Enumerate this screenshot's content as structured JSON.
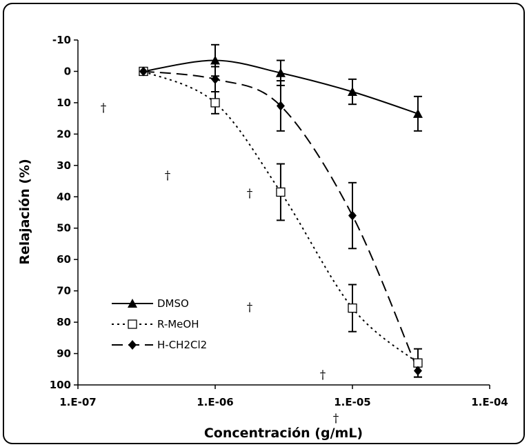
{
  "chart_data": {
    "type": "line",
    "xlabel": "Concentración (g/mL)",
    "ylabel": "Relajación (%)",
    "x_scale": "log",
    "x_tick_labels": [
      "1.E-07",
      "1.E-06",
      "1.E-05",
      "1.E-04"
    ],
    "y_tick_labels": [
      "-10",
      "0",
      "10",
      "20",
      "30",
      "40",
      "50",
      "60",
      "70",
      "80",
      "90",
      "100"
    ],
    "xlim": [
      1e-07,
      0.0001
    ],
    "ylim": [
      -10,
      100
    ],
    "y_inverted": true,
    "grid": false,
    "legend_position": "bottom-left",
    "series": [
      {
        "name": "DMSO",
        "marker": "filled-triangle",
        "line_style": "solid",
        "color": "#000000",
        "x": [
          3e-07,
          1e-06,
          3e-06,
          1e-05,
          3e-05
        ],
        "y": [
          0,
          -3.5,
          0.5,
          6.5,
          13.5
        ],
        "err": [
          0,
          5,
          4,
          4,
          5.5
        ]
      },
      {
        "name": "R-MeOH",
        "marker": "open-square",
        "line_style": "dotted",
        "color": "#000000",
        "x": [
          3e-07,
          1e-06,
          3e-06,
          1e-05,
          3e-05
        ],
        "y": [
          0,
          10,
          38.5,
          75.5,
          93
        ],
        "err": [
          0,
          3.5,
          9,
          7.5,
          4.5
        ]
      },
      {
        "name": "H-CH2Cl2",
        "marker": "filled-diamond",
        "line_style": "dashed",
        "color": "#000000",
        "x": [
          3e-07,
          1e-06,
          3e-06,
          1e-05,
          3e-05
        ],
        "y": [
          0,
          2.5,
          11,
          46,
          95.5
        ],
        "err": [
          0,
          4,
          8,
          10.5,
          2
        ]
      }
    ],
    "annotations": [
      "†",
      "†",
      "†",
      "†",
      "†",
      "†"
    ]
  }
}
